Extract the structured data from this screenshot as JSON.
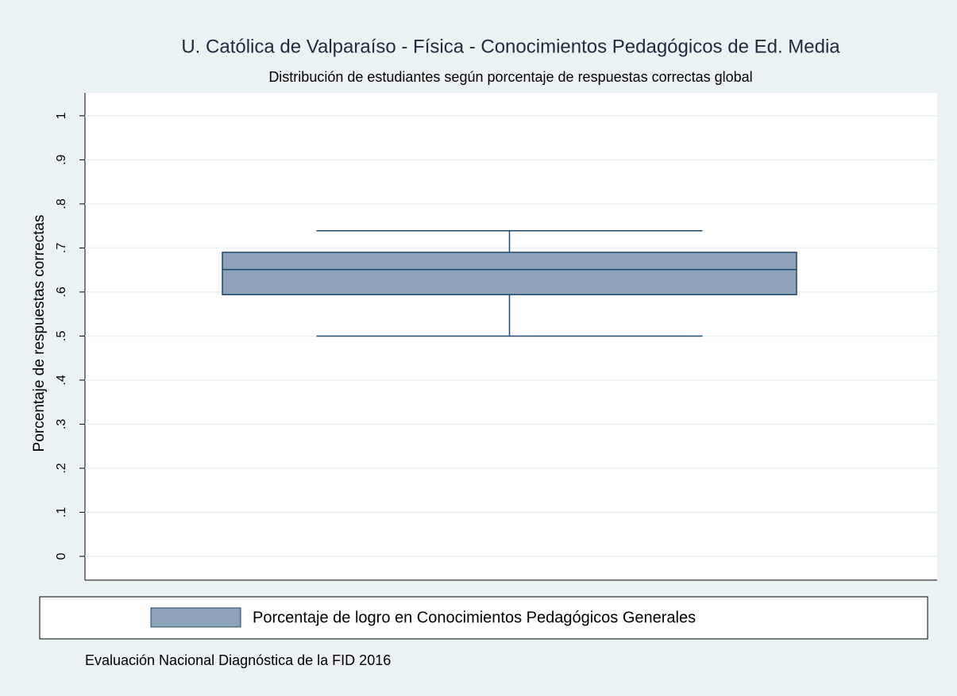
{
  "chart_data": {
    "type": "box",
    "title": "U. Católica de Valparaíso - Física - Conocimientos Pedagógicos de Ed. Media",
    "subtitle": "Distribución de estudiantes según porcentaje de respuestas correctas global",
    "y_label": "Porcentaje de respuestas correctas",
    "note": "Evaluación Nacional Diagnóstica de la FID 2016",
    "series": [
      {
        "name": "Porcentaje de logro en Conocimientos Pedagógicos Generales",
        "color": "#8ca3b8",
        "min": 0.5,
        "q1": 0.594,
        "median": 0.651,
        "q3": 0.69,
        "max": 0.739
      }
    ],
    "ylim": [
      -0.054,
      1.052
    ],
    "yticks": [
      0,
      {
        "value": 0.1,
        "label": ".1"
      },
      {
        "value": 0.2,
        "label": ".2"
      },
      {
        "value": 0.3,
        "label": ".3"
      },
      {
        "value": 0.4,
        "label": ".4"
      },
      {
        "value": 0.5,
        "label": ".5"
      },
      {
        "value": 0.6,
        "label": ".6"
      },
      {
        "value": 0.7,
        "label": ".7"
      },
      {
        "value": 0.8,
        "label": ".8"
      },
      {
        "value": 0.9,
        "label": ".9"
      },
      1
    ],
    "grid": true,
    "legend": "bottom"
  }
}
